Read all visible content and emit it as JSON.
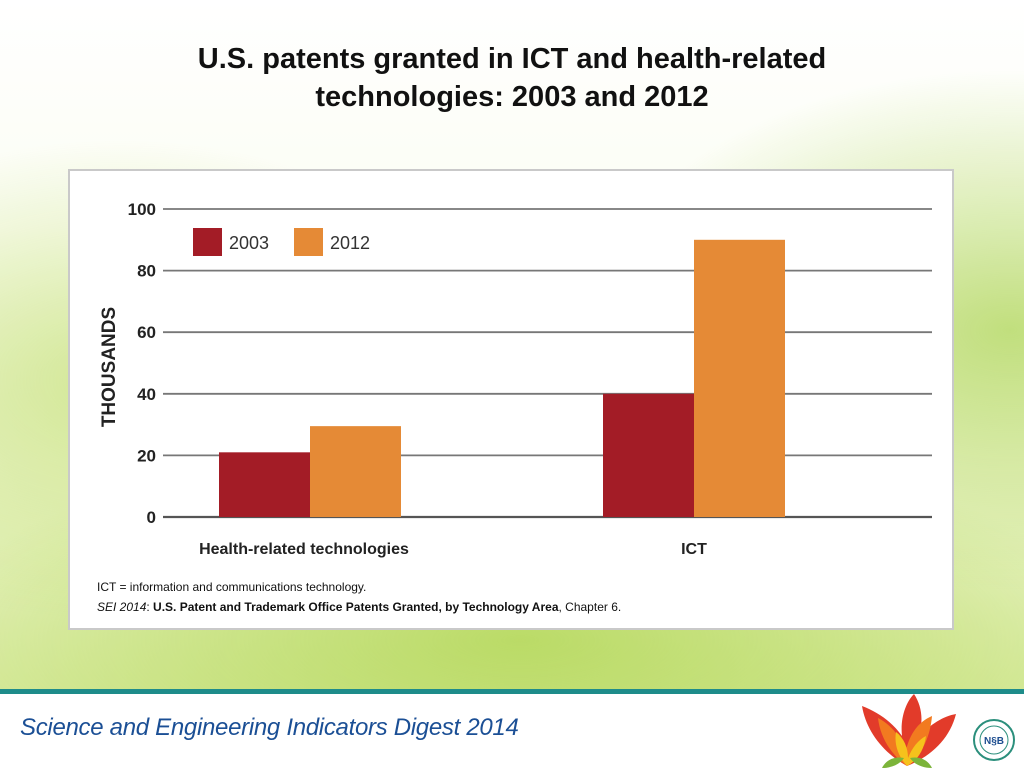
{
  "slide": {
    "title_line1": "U.S. patents granted in ICT and health-related",
    "title_line2": "technologies: 2003 and 2012"
  },
  "chart_data": {
    "type": "bar",
    "categories": [
      "Health-related technologies",
      "ICT"
    ],
    "series": [
      {
        "name": "2003",
        "values": [
          21,
          40
        ],
        "color": "#a31c26"
      },
      {
        "name": "2012",
        "values": [
          29.5,
          90
        ],
        "color": "#e58a36"
      }
    ],
    "ylabel": "THOUSANDS",
    "ylim": [
      0,
      100
    ],
    "yticks": [
      "0",
      "20",
      "40",
      "60",
      "80",
      "100"
    ],
    "grid": true,
    "legend_position": "top-left"
  },
  "notes": {
    "definition": "ICT = information and communications technology.",
    "source_prefix": "SEI 2014",
    "source_sep": ": ",
    "source_title": "U.S. Patent and Trademark Office Patents Granted, by Technology Area",
    "source_suffix": ", Chapter 6."
  },
  "footer": {
    "text": "Science and Engineering Indicators Digest 2014",
    "seal_text": "N§B",
    "colors": {
      "rule": "#1e8c8a",
      "text": "#1b4f95"
    }
  }
}
